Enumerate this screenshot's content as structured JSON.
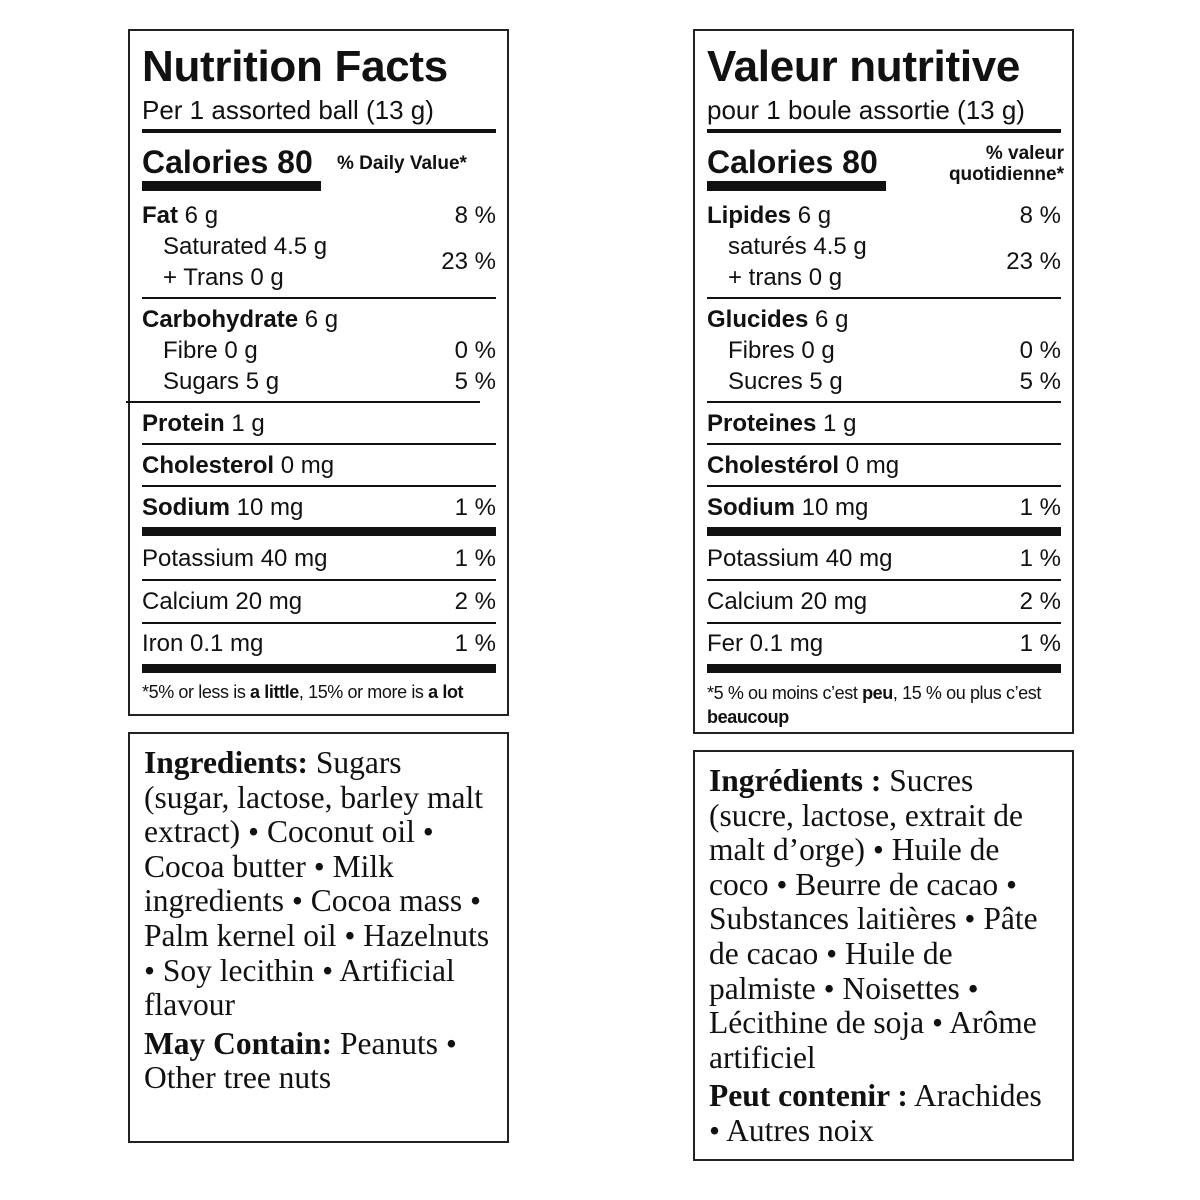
{
  "english_label": {
    "title": "Nutrition Facts",
    "serving": "Per 1 assorted ball (13 g)",
    "calories_label": "Calories",
    "calories_value": "80",
    "dv_header": "% Daily Value*",
    "fat": {
      "label": "Fat",
      "amount": "6 g",
      "pct": "8 %"
    },
    "saturated": {
      "label": "Saturated 4.5 g"
    },
    "trans": {
      "label": "+ Trans 0 g"
    },
    "sat_trans_pct": "23 %",
    "carbohydrate": {
      "label": "Carbohydrate",
      "amount": "6 g"
    },
    "fibre": {
      "label": "Fibre 0 g",
      "pct": "0 %"
    },
    "sugars": {
      "label": "Sugars 5 g",
      "pct": "5 %"
    },
    "protein": {
      "label": "Protein",
      "amount": "1 g"
    },
    "cholesterol": {
      "label": "Cholesterol",
      "amount": "0 mg"
    },
    "sodium": {
      "label": "Sodium",
      "amount": "10 mg",
      "pct": "1 %"
    },
    "potassium": {
      "label": "Potassium 40 mg",
      "pct": "1 %"
    },
    "calcium": {
      "label": "Calcium 20 mg",
      "pct": "2 %"
    },
    "iron": {
      "label": "Iron 0.1 mg",
      "pct": "1 %"
    },
    "footnote": {
      "part1": "*5% or less is ",
      "little": "a little",
      "part2": ", 15% or more is ",
      "lot": "a lot"
    }
  },
  "french_label": {
    "title": "Valeur nutritive",
    "serving": "pour 1 boule assortie (13 g)",
    "calories_label": "Calories",
    "calories_value": "80",
    "dv_header_line1": "% valeur",
    "dv_header_line2": "quotidienne*",
    "fat": {
      "label": "Lipides",
      "amount": "6 g",
      "pct": "8 %"
    },
    "saturated": {
      "label": "saturés 4.5 g"
    },
    "trans": {
      "label": "+ trans 0 g"
    },
    "sat_trans_pct": "23 %",
    "carbohydrate": {
      "label": "Glucides",
      "amount": "6 g"
    },
    "fibre": {
      "label": "Fibres 0 g",
      "pct": "0 %"
    },
    "sugars": {
      "label": "Sucres 5 g",
      "pct": "5 %"
    },
    "protein": {
      "label": "Proteines",
      "amount": "1 g"
    },
    "cholesterol": {
      "label": "Cholestérol",
      "amount": "0 mg"
    },
    "sodium": {
      "label": "Sodium",
      "amount": "10 mg",
      "pct": "1 %"
    },
    "potassium": {
      "label": "Potassium 40 mg",
      "pct": "1 %"
    },
    "calcium": {
      "label": "Calcium 20 mg",
      "pct": "2 %"
    },
    "iron": {
      "label": "Fer 0.1 mg",
      "pct": "1 %"
    },
    "footnote": {
      "part1": "*5 % ou moins c’est ",
      "peu": "peu",
      "part2": ", 15 % ou plus c’est ",
      "beaucoup": "beaucoup"
    }
  },
  "ingredients_en": {
    "heading": "Ingredients:",
    "text": " Sugars (sugar, lactose, barley malt extract) • Coconut oil • Cocoa butter • Milk ingredients • Cocoa mass • Palm kernel oil • Hazelnuts • Soy lecithin • Artificial flavour",
    "may_contain_heading": "May Contain:",
    "may_contain_text": " Peanuts • Other tree nuts"
  },
  "ingredients_fr": {
    "heading": "Ingrédients :",
    "text": " Sucres (sucre, lactose, extrait de malt d’orge) • Huile de coco • Beurre de cacao • Substances laitières • Pâte de cacao • Huile de palmiste • Noisettes • Lécithine de soja • Arôme artificiel",
    "may_contain_heading": "Peut contenir :",
    "may_contain_text": " Arachides • Autres noix"
  }
}
